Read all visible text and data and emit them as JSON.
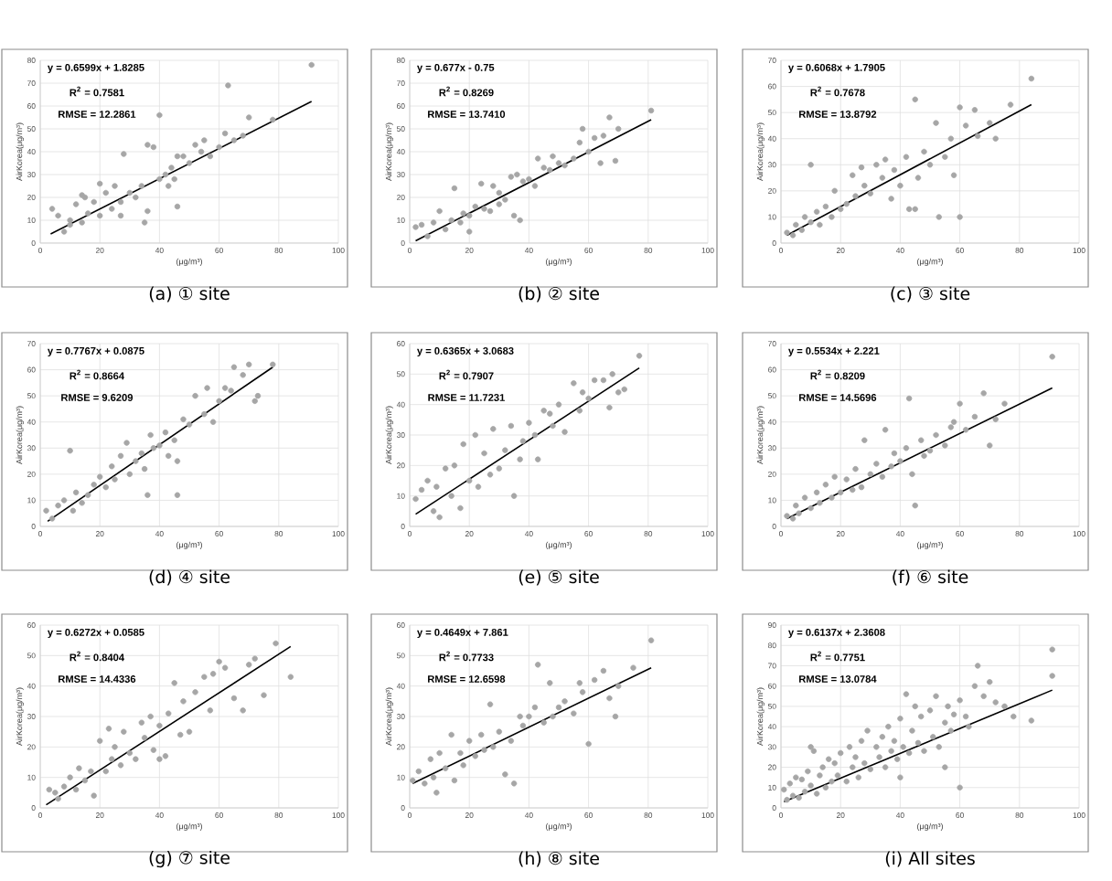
{
  "chart_data": [
    {
      "type": "scatter",
      "title": "(a)  ① site",
      "xlabel": "(μg/m³)",
      "ylabel": "AirKorea(μg/m³)",
      "xlim": [
        0,
        100
      ],
      "xticks": [
        0,
        20,
        40,
        60,
        80,
        100
      ],
      "ylim": [
        0,
        80
      ],
      "yticks": [
        0,
        10,
        20,
        30,
        40,
        50,
        60,
        70,
        80
      ],
      "grid": true,
      "annotations": [
        "y = 0.6599x + 1.8285",
        "R$^{2}$ = 0.7581",
        "RMSE = 12.2861"
      ],
      "series": [
        {
          "color": "#a6a6a6",
          "x": [
            4,
            6,
            8,
            10,
            12,
            14,
            15,
            16,
            18,
            20,
            22,
            24,
            25,
            27,
            28,
            30,
            32,
            34,
            35,
            36,
            38,
            40,
            40,
            42,
            43,
            44,
            45,
            46,
            48,
            50,
            52,
            54,
            55,
            57,
            60,
            62,
            63,
            65,
            68,
            70,
            78,
            91,
            27,
            36,
            20,
            46,
            10,
            14
          ],
          "values": [
            15,
            12,
            5,
            10,
            17,
            9,
            20,
            13,
            18,
            12,
            22,
            15,
            25,
            18,
            39,
            22,
            20,
            25,
            9,
            43,
            42,
            28,
            56,
            30,
            25,
            33,
            28,
            16,
            38,
            35,
            43,
            40,
            45,
            38,
            42,
            48,
            69,
            45,
            47,
            55,
            54,
            78,
            12,
            14,
            26,
            38,
            8,
            21
          ]
        },
        {
          "type": "line",
          "marker": "none",
          "color": "#000000",
          "x": [
            3.5,
            91
          ],
          "values": [
            4,
            62
          ]
        }
      ]
    },
    {
      "type": "scatter",
      "title": "(b)  ② site",
      "xlabel": "(μg/m³)",
      "ylabel": "AirKorea(μg/m³)",
      "xlim": [
        0,
        100
      ],
      "xticks": [
        0,
        20,
        40,
        60,
        80,
        100
      ],
      "ylim": [
        0,
        80
      ],
      "yticks": [
        0,
        10,
        20,
        30,
        40,
        50,
        60,
        70,
        80
      ],
      "grid": true,
      "annotations": [
        "y = 0.677x - 0.75",
        "R$^{2}$ = 0.8269",
        "RMSE = 13.7410"
      ],
      "series": [
        {
          "color": "#a6a6a6",
          "x": [
            2,
            4,
            6,
            8,
            10,
            12,
            14,
            15,
            17,
            18,
            20,
            22,
            24,
            25,
            27,
            28,
            30,
            32,
            34,
            35,
            37,
            38,
            40,
            42,
            43,
            45,
            47,
            48,
            50,
            52,
            55,
            57,
            58,
            60,
            62,
            64,
            65,
            67,
            69,
            70,
            81,
            20,
            30,
            36
          ],
          "values": [
            7,
            8,
            3,
            9,
            14,
            6,
            10,
            24,
            9,
            13,
            12,
            16,
            26,
            15,
            14,
            25,
            22,
            19,
            29,
            12,
            10,
            27,
            28,
            25,
            37,
            33,
            32,
            38,
            35,
            34,
            37,
            44,
            50,
            40,
            46,
            35,
            47,
            55,
            36,
            50,
            58,
            5,
            17,
            30
          ]
        },
        {
          "type": "line",
          "marker": "none",
          "color": "#000000",
          "x": [
            2,
            81
          ],
          "values": [
            1,
            54
          ]
        }
      ]
    },
    {
      "type": "scatter",
      "title": "(c)  ③ site",
      "xlabel": "(μg/m³)",
      "ylabel": "AirKorea(μg/m³)",
      "xlim": [
        0,
        100
      ],
      "xticks": [
        0,
        20,
        40,
        60,
        80,
        100
      ],
      "ylim": [
        0,
        70
      ],
      "yticks": [
        0,
        10,
        20,
        30,
        40,
        50,
        60,
        70
      ],
      "grid": true,
      "annotations": [
        "y = 0.6068x + 1.7905",
        "R$^{2}$ = 0.7678",
        "RMSE = 13.8792"
      ],
      "series": [
        {
          "color": "#a6a6a6",
          "x": [
            2,
            4,
            5,
            7,
            8,
            10,
            12,
            13,
            15,
            17,
            18,
            20,
            22,
            24,
            25,
            27,
            28,
            30,
            32,
            34,
            35,
            37,
            38,
            40,
            42,
            43,
            45,
            46,
            48,
            50,
            52,
            53,
            55,
            57,
            58,
            60,
            60,
            62,
            65,
            66,
            70,
            72,
            77,
            84,
            10,
            45
          ],
          "values": [
            4,
            3,
            7,
            5,
            10,
            8,
            12,
            7,
            14,
            10,
            20,
            13,
            15,
            26,
            18,
            29,
            22,
            19,
            30,
            25,
            32,
            17,
            28,
            22,
            33,
            13,
            55,
            25,
            35,
            30,
            46,
            10,
            33,
            40,
            26,
            52,
            10,
            45,
            51,
            41,
            46,
            40,
            53,
            63,
            30,
            13
          ]
        },
        {
          "type": "line",
          "marker": "none",
          "color": "#000000",
          "x": [
            2,
            84
          ],
          "values": [
            3,
            53
          ]
        }
      ]
    },
    {
      "type": "scatter",
      "title": "(d)  ④ site",
      "xlabel": "(μg/m³)",
      "ylabel": "AirKorea(μg/m³)",
      "xlim": [
        0,
        100
      ],
      "xticks": [
        0,
        20,
        40,
        60,
        80,
        100
      ],
      "ylim": [
        0,
        70
      ],
      "yticks": [
        0,
        10,
        20,
        30,
        40,
        50,
        60,
        70
      ],
      "grid": true,
      "annotations": [
        "y = 0.7767x + 0.0875",
        "R$^{2}$ = 0.8664",
        "RMSE = 9.6209"
      ],
      "series": [
        {
          "color": "#a6a6a6",
          "x": [
            2,
            4,
            6,
            8,
            10,
            11,
            12,
            14,
            16,
            18,
            20,
            22,
            24,
            25,
            27,
            29,
            30,
            32,
            34,
            35,
            37,
            38,
            40,
            42,
            43,
            45,
            46,
            48,
            50,
            52,
            55,
            56,
            58,
            60,
            62,
            64,
            65,
            68,
            70,
            72,
            73,
            78,
            36,
            46
          ],
          "values": [
            6,
            3,
            8,
            10,
            29,
            6,
            13,
            9,
            12,
            16,
            19,
            15,
            23,
            18,
            27,
            32,
            20,
            25,
            28,
            22,
            35,
            30,
            31,
            36,
            27,
            33,
            12,
            41,
            39,
            50,
            43,
            53,
            40,
            48,
            53,
            52,
            61,
            58,
            62,
            48,
            50,
            62,
            12,
            25
          ]
        },
        {
          "type": "line",
          "marker": "none",
          "color": "#000000",
          "x": [
            2.5,
            78
          ],
          "values": [
            2,
            61
          ]
        }
      ]
    },
    {
      "type": "scatter",
      "title": "(e)  ⑤ site",
      "xlabel": "(μg/m³)",
      "ylabel": "AirKorea(μg/m³)",
      "xlim": [
        0,
        100
      ],
      "xticks": [
        0,
        20,
        40,
        60,
        80,
        100
      ],
      "ylim": [
        0,
        60
      ],
      "yticks": [
        0,
        10,
        20,
        30,
        40,
        50,
        60
      ],
      "grid": true,
      "annotations": [
        "y = 0.6365x + 3.0683",
        "R$^{2}$ = 0.7907",
        "RMSE = 11.7231"
      ],
      "series": [
        {
          "color": "#a6a6a6",
          "x": [
            2,
            4,
            6,
            8,
            9,
            10,
            12,
            14,
            15,
            17,
            18,
            20,
            22,
            23,
            25,
            27,
            28,
            30,
            32,
            34,
            35,
            37,
            38,
            40,
            42,
            43,
            45,
            47,
            48,
            50,
            52,
            55,
            57,
            58,
            60,
            62,
            65,
            67,
            68,
            70,
            72,
            77
          ],
          "values": [
            9,
            12,
            15,
            5,
            13,
            3,
            19,
            10,
            20,
            6,
            27,
            15,
            30,
            13,
            24,
            17,
            32,
            19,
            25,
            33,
            10,
            22,
            28,
            34,
            30,
            22,
            38,
            37,
            33,
            40,
            31,
            47,
            38,
            44,
            42,
            48,
            48,
            39,
            50,
            44,
            45,
            56
          ]
        },
        {
          "type": "line",
          "marker": "none",
          "color": "#000000",
          "x": [
            2,
            77
          ],
          "values": [
            4,
            52
          ]
        }
      ]
    },
    {
      "type": "scatter",
      "title": "(f)  ⑥ site",
      "xlabel": "(μg/m³)",
      "ylabel": "AirKorea(μg/m³)",
      "xlim": [
        0,
        100
      ],
      "xticks": [
        0,
        20,
        40,
        60,
        80,
        100
      ],
      "ylim": [
        0,
        70
      ],
      "yticks": [
        0,
        10,
        20,
        30,
        40,
        50,
        60,
        70
      ],
      "grid": true,
      "annotations": [
        "y = 0.5534x + 2.221",
        "R$^{2}$ = 0.8209",
        "RMSE = 14.5696"
      ],
      "series": [
        {
          "color": "#a6a6a6",
          "x": [
            2,
            4,
            5,
            6,
            8,
            10,
            12,
            13,
            15,
            17,
            18,
            20,
            22,
            24,
            25,
            27,
            28,
            30,
            32,
            34,
            35,
            37,
            38,
            40,
            42,
            43,
            44,
            45,
            47,
            48,
            50,
            52,
            55,
            57,
            58,
            60,
            62,
            65,
            68,
            70,
            72,
            75,
            91
          ],
          "values": [
            4,
            3,
            8,
            5,
            11,
            7,
            13,
            9,
            16,
            11,
            19,
            13,
            18,
            14,
            22,
            15,
            33,
            20,
            24,
            19,
            37,
            23,
            28,
            25,
            30,
            49,
            20,
            8,
            33,
            27,
            29,
            35,
            31,
            38,
            40,
            47,
            37,
            42,
            51,
            31,
            41,
            47,
            65
          ]
        },
        {
          "type": "line",
          "marker": "none",
          "color": "#000000",
          "x": [
            2,
            91
          ],
          "values": [
            3,
            53
          ]
        }
      ]
    },
    {
      "type": "scatter",
      "title": "(g)  ⑦ site",
      "xlabel": "(μg/m³)",
      "ylabel": "AirKorea(μg/m³)",
      "xlim": [
        0,
        100
      ],
      "xticks": [
        0,
        20,
        40,
        60,
        80,
        100
      ],
      "ylim": [
        0,
        60
      ],
      "yticks": [
        0,
        10,
        20,
        30,
        40,
        50,
        60
      ],
      "grid": true,
      "annotations": [
        "y = 0.6272x + 0.0585",
        "R$^{2}$ = 0.8404",
        "RMSE = 14.4336"
      ],
      "series": [
        {
          "color": "#a6a6a6",
          "x": [
            3,
            5,
            6,
            8,
            10,
            12,
            13,
            15,
            17,
            18,
            20,
            22,
            23,
            24,
            25,
            27,
            28,
            30,
            32,
            34,
            35,
            37,
            38,
            40,
            42,
            43,
            45,
            47,
            48,
            50,
            52,
            55,
            57,
            58,
            60,
            62,
            65,
            68,
            70,
            72,
            75,
            79,
            84,
            40
          ],
          "values": [
            6,
            5,
            3,
            7,
            10,
            6,
            13,
            9,
            12,
            4,
            22,
            12,
            26,
            16,
            20,
            14,
            25,
            18,
            16,
            28,
            23,
            30,
            19,
            27,
            17,
            31,
            41,
            24,
            35,
            25,
            38,
            43,
            32,
            44,
            48,
            46,
            36,
            32,
            47,
            49,
            37,
            54,
            43,
            16
          ]
        },
        {
          "type": "line",
          "marker": "none",
          "color": "#000000",
          "x": [
            2,
            84
          ],
          "values": [
            1,
            53
          ]
        }
      ]
    },
    {
      "type": "scatter",
      "title": "(h)  ⑧ site",
      "xlabel": "(μg/m³)",
      "ylabel": "AirKorea(μg/m³)",
      "xlim": [
        0,
        100
      ],
      "xticks": [
        0,
        20,
        40,
        60,
        80,
        100
      ],
      "ylim": [
        0,
        60
      ],
      "yticks": [
        0,
        10,
        20,
        30,
        40,
        50,
        60
      ],
      "grid": true,
      "annotations": [
        "y = 0.4649x + 7.861",
        "R$^{2}$ = 0.7733",
        "RMSE = 12.6598"
      ],
      "series": [
        {
          "color": "#a6a6a6",
          "x": [
            1,
            3,
            5,
            7,
            8,
            9,
            10,
            12,
            14,
            15,
            17,
            18,
            20,
            22,
            24,
            25,
            27,
            28,
            30,
            32,
            34,
            35,
            37,
            38,
            40,
            42,
            43,
            45,
            47,
            48,
            50,
            52,
            55,
            57,
            58,
            60,
            62,
            65,
            67,
            69,
            70,
            75,
            81
          ],
          "values": [
            9,
            12,
            8,
            16,
            10,
            5,
            18,
            13,
            24,
            9,
            18,
            14,
            22,
            17,
            24,
            19,
            34,
            20,
            25,
            11,
            22,
            8,
            30,
            27,
            30,
            33,
            47,
            28,
            41,
            30,
            33,
            35,
            31,
            41,
            38,
            21,
            42,
            45,
            36,
            30,
            40,
            46,
            55
          ]
        },
        {
          "type": "line",
          "marker": "none",
          "color": "#000000",
          "x": [
            1,
            81
          ],
          "values": [
            8,
            46
          ]
        }
      ]
    },
    {
      "type": "scatter",
      "title": "(i)  All sites",
      "xlabel": "(μg/m³)",
      "ylabel": "AirKorea(μg/m³)",
      "xlim": [
        0,
        100
      ],
      "xticks": [
        0,
        20,
        40,
        60,
        80,
        100
      ],
      "ylim": [
        0,
        90
      ],
      "yticks": [
        0,
        10,
        20,
        30,
        40,
        50,
        60,
        70,
        80,
        90
      ],
      "grid": true,
      "annotations": [
        "y = 0.6137x + 2.3608",
        "R$^{2}$ = 0.7751",
        "RMSE = 13.0784"
      ],
      "series": [
        {
          "color": "#a6a6a6",
          "x": [
            1,
            2,
            3,
            4,
            5,
            6,
            7,
            8,
            9,
            10,
            11,
            12,
            13,
            14,
            15,
            16,
            17,
            18,
            19,
            20,
            22,
            23,
            24,
            25,
            26,
            27,
            28,
            29,
            30,
            32,
            33,
            34,
            35,
            36,
            37,
            38,
            39,
            40,
            41,
            42,
            43,
            44,
            45,
            46,
            47,
            48,
            50,
            51,
            52,
            53,
            55,
            56,
            57,
            58,
            60,
            60,
            62,
            63,
            65,
            66,
            68,
            70,
            72,
            75,
            78,
            84,
            91,
            91,
            10,
            40,
            55
          ],
          "values": [
            9,
            4,
            12,
            6,
            15,
            5,
            14,
            8,
            18,
            11,
            28,
            7,
            16,
            20,
            10,
            24,
            13,
            22,
            16,
            27,
            13,
            30,
            20,
            25,
            15,
            33,
            22,
            38,
            19,
            30,
            25,
            35,
            20,
            40,
            28,
            33,
            24,
            44,
            30,
            56,
            27,
            38,
            50,
            32,
            45,
            28,
            48,
            35,
            55,
            30,
            42,
            50,
            38,
            46,
            10,
            53,
            45,
            40,
            60,
            70,
            55,
            62,
            52,
            50,
            45,
            43,
            65,
            78,
            30,
            15,
            20
          ]
        },
        {
          "type": "line",
          "marker": "none",
          "color": "#000000",
          "x": [
            1,
            91
          ],
          "values": [
            3,
            58
          ]
        }
      ]
    }
  ]
}
